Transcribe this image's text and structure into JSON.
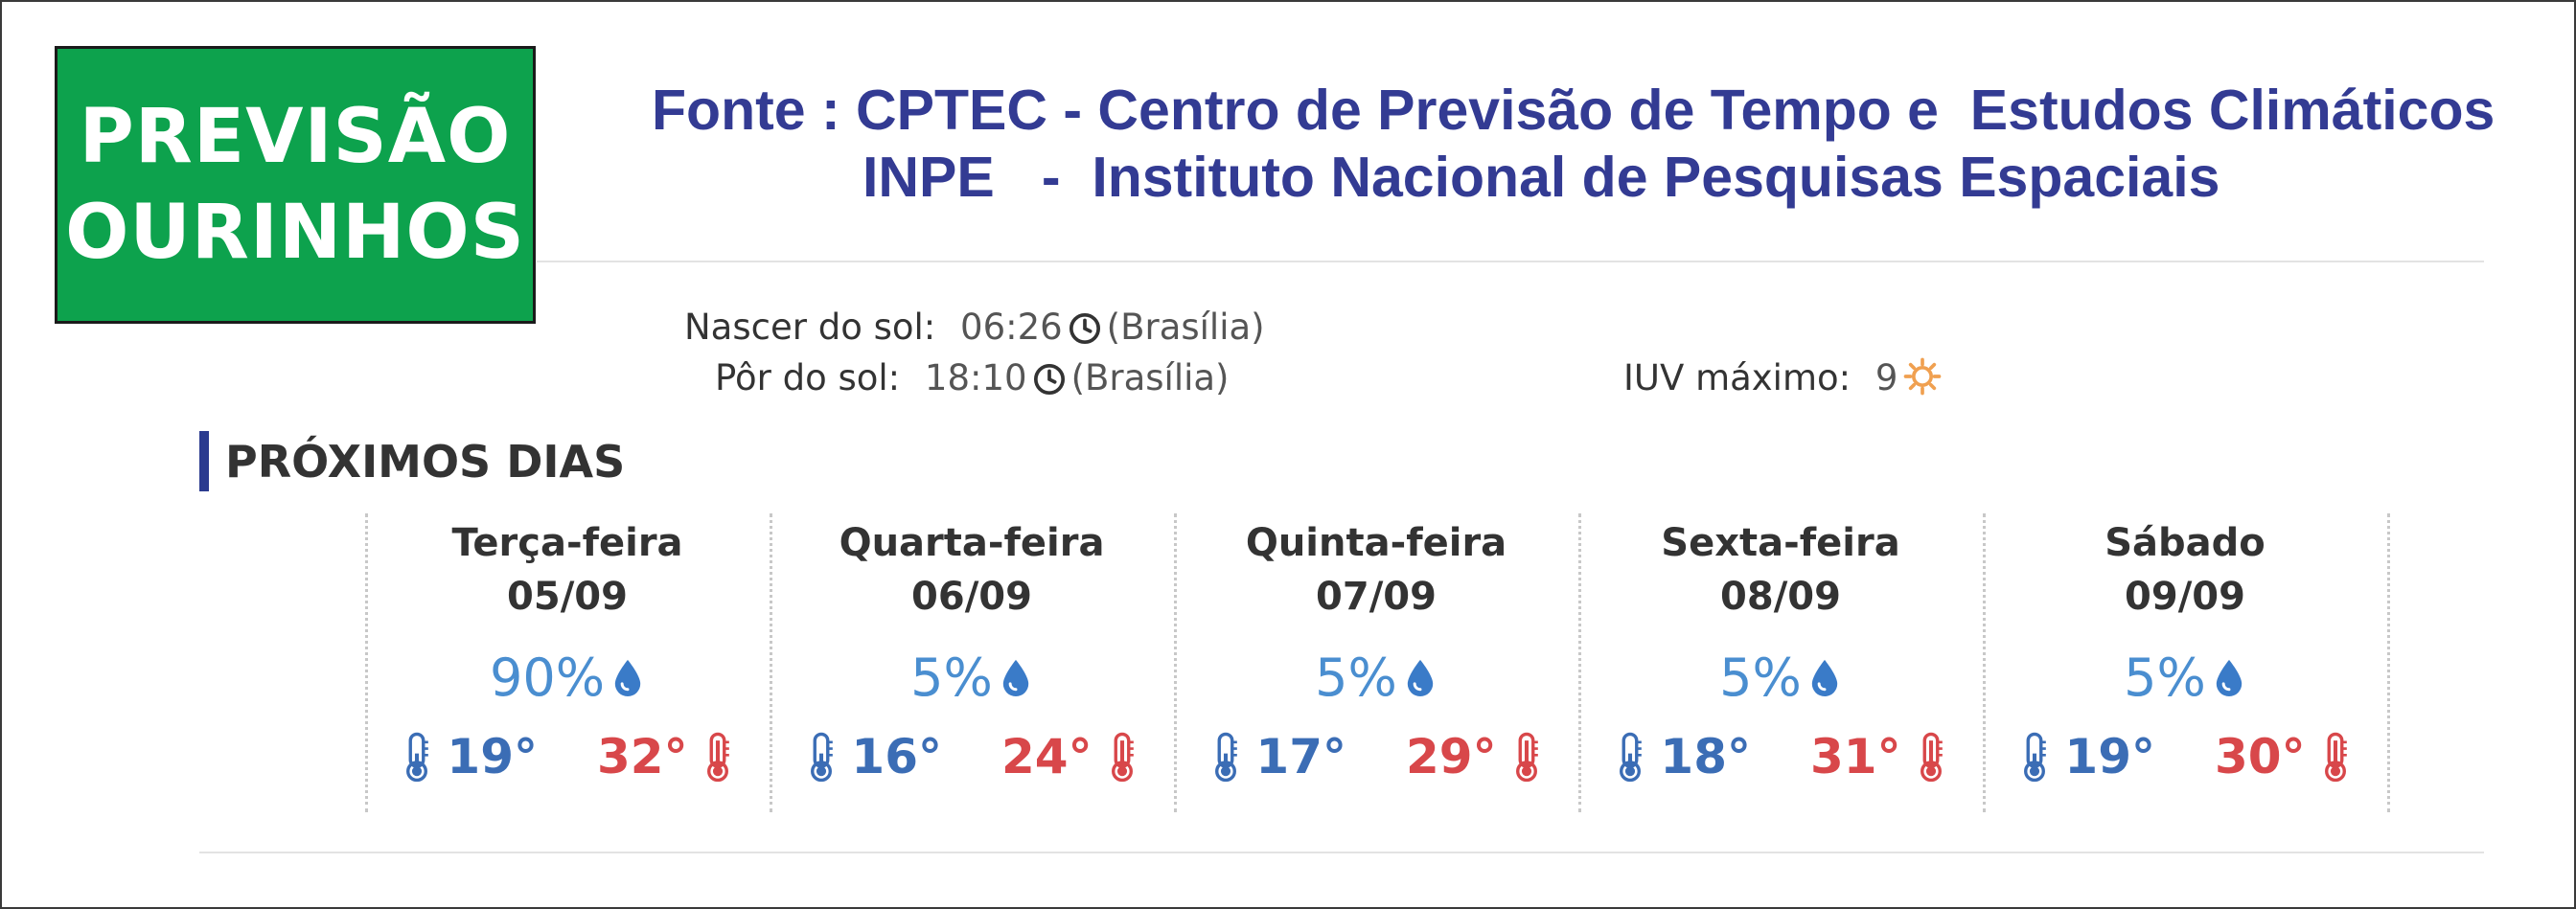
{
  "badge": {
    "line1": "PREVISÃO",
    "line2": "OURINHOS"
  },
  "source": {
    "line1": "Fonte : CPTEC - Centro de Previsão de Tempo e  Estudos Climáticos",
    "line2": "INPE   -  Instituto Nacional de Pesquisas Espaciais"
  },
  "sun": {
    "sunrise_label": "Nascer do sol:",
    "sunrise_time": "06:26",
    "sunrise_zone": "(Brasília)",
    "sunset_label": "Pôr do sol:",
    "sunset_time": "18:10",
    "sunset_zone": "(Brasília)",
    "uv_label": "IUV máximo:",
    "uv_value": "9"
  },
  "section": {
    "title": "PRÓXIMOS DIAS"
  },
  "days": [
    {
      "name": "Terça-feira",
      "date": "05/09",
      "rain": "90%",
      "min": "19°",
      "max": "32°"
    },
    {
      "name": "Quarta-feira",
      "date": "06/09",
      "rain": "5%",
      "min": "16°",
      "max": "24°"
    },
    {
      "name": "Quinta-feira",
      "date": "07/09",
      "rain": "5%",
      "min": "17°",
      "max": "29°"
    },
    {
      "name": "Sexta-feira",
      "date": "08/09",
      "rain": "5%",
      "min": "18°",
      "max": "31°"
    },
    {
      "name": "Sábado",
      "date": "09/09",
      "rain": "5%",
      "min": "19°",
      "max": "30°"
    }
  ],
  "icons": {
    "clock": "clock-icon",
    "sun": "sun-icon",
    "drop": "water-drop-icon",
    "thermo_min": "thermometer-cold-icon",
    "thermo_max": "thermometer-hot-icon"
  },
  "colors": {
    "badge_bg": "#0da24d",
    "source_text": "#333b93",
    "section_bar": "#2b3b8f",
    "min_temp": "#3b6db5",
    "max_temp": "#d8474a",
    "rain": "#4a8ed0",
    "uv_sun": "#f0a050"
  }
}
